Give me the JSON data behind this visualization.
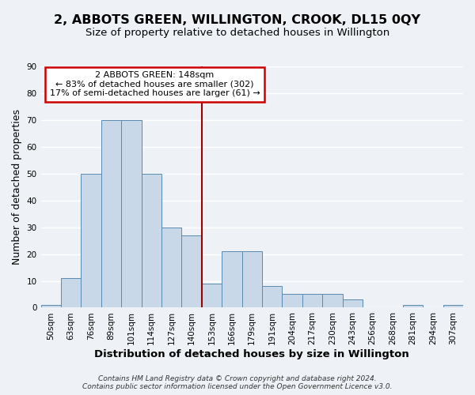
{
  "title": "2, ABBOTS GREEN, WILLINGTON, CROOK, DL15 0QY",
  "subtitle": "Size of property relative to detached houses in Willington",
  "xlabel": "Distribution of detached houses by size in Willington",
  "ylabel": "Number of detached properties",
  "bar_labels": [
    "50sqm",
    "63sqm",
    "76sqm",
    "89sqm",
    "101sqm",
    "114sqm",
    "127sqm",
    "140sqm",
    "153sqm",
    "166sqm",
    "179sqm",
    "191sqm",
    "204sqm",
    "217sqm",
    "230sqm",
    "243sqm",
    "256sqm",
    "268sqm",
    "281sqm",
    "294sqm",
    "307sqm"
  ],
  "bar_heights": [
    1,
    11,
    50,
    70,
    70,
    50,
    30,
    27,
    9,
    21,
    21,
    8,
    5,
    5,
    5,
    3,
    0,
    0,
    1,
    0,
    1
  ],
  "bar_color": "#c8d8e8",
  "bar_edge_color": "#5a8ab0",
  "vline_x": 7.5,
  "vline_color": "#990000",
  "annotation_title": "2 ABBOTS GREEN: 148sqm",
  "annotation_line1": "← 83% of detached houses are smaller (302)",
  "annotation_line2": "17% of semi-detached houses are larger (61) →",
  "annotation_box_color": "#ffffff",
  "annotation_box_edge_color": "#cc0000",
  "ylim": [
    0,
    90
  ],
  "yticks": [
    0,
    10,
    20,
    30,
    40,
    50,
    60,
    70,
    80,
    90
  ],
  "footer1": "Contains HM Land Registry data © Crown copyright and database right 2024.",
  "footer2": "Contains public sector information licensed under the Open Government Licence v3.0.",
  "background_color": "#eef2f7",
  "grid_color": "#ffffff",
  "title_fontsize": 11.5,
  "subtitle_fontsize": 9.5,
  "xlabel_fontsize": 9.5,
  "ylabel_fontsize": 9,
  "tick_fontsize": 7.5,
  "annotation_fontsize": 8,
  "footer_fontsize": 6.5
}
